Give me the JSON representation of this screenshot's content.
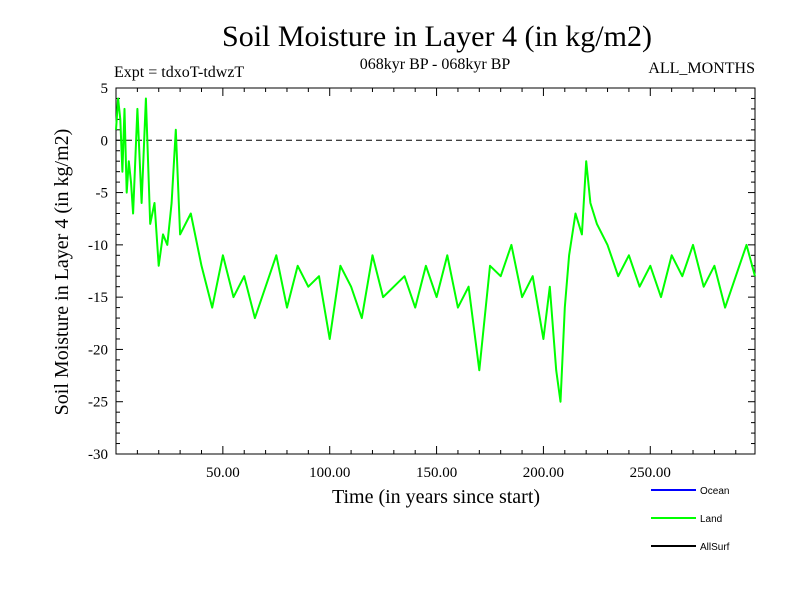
{
  "chart_data": {
    "type": "line",
    "title": "Soil Moisture in Layer 4 (in kg/m2)",
    "subtitle_left": "Expt = tdxoT-tdwzT",
    "subtitle_center": "068kyr BP - 068kyr BP",
    "subtitle_right": "ALL_MONTHS",
    "xlabel": "Time (in years since start)",
    "ylabel": "Soil Moisture in Layer 4 (in kg/m2)",
    "xlim": [
      0,
      299
    ],
    "ylim": [
      -30,
      5
    ],
    "x_ticks": [
      50,
      100,
      150,
      200,
      250
    ],
    "x_tick_labels": [
      "50.00",
      "100.00",
      "150.00",
      "200.00",
      "250.00"
    ],
    "y_ticks": [
      5,
      0,
      -5,
      -10,
      -15,
      -20,
      -25,
      -30
    ],
    "y_tick_labels": [
      "5",
      "0",
      "-5",
      "-10",
      "-15",
      "-20",
      "-25",
      "-30"
    ],
    "zero_line": true,
    "grid": false,
    "legend_position": "bottom-right",
    "series": [
      {
        "name": "Land",
        "color": "#00ff00",
        "x": [
          0,
          1,
          2,
          3,
          4,
          5,
          6,
          7,
          8,
          10,
          12,
          14,
          16,
          18,
          20,
          22,
          24,
          26,
          28,
          30,
          35,
          40,
          45,
          50,
          55,
          60,
          65,
          70,
          75,
          80,
          85,
          90,
          95,
          100,
          105,
          110,
          115,
          120,
          125,
          130,
          135,
          140,
          145,
          150,
          155,
          160,
          165,
          170,
          175,
          180,
          185,
          190,
          195,
          200,
          203,
          206,
          208,
          210,
          212,
          215,
          218,
          220,
          222,
          225,
          230,
          235,
          240,
          245,
          250,
          255,
          260,
          265,
          270,
          275,
          280,
          285,
          290,
          295,
          299
        ],
        "y": [
          1,
          4,
          2,
          -3,
          3,
          -5,
          -2,
          -4,
          -7,
          3,
          -6,
          4,
          -8,
          -6,
          -12,
          -9,
          -10,
          -6,
          1,
          -9,
          -7,
          -12,
          -16,
          -11,
          -15,
          -13,
          -17,
          -14,
          -11,
          -16,
          -12,
          -14,
          -13,
          -19,
          -12,
          -14,
          -17,
          -11,
          -15,
          -14,
          -13,
          -16,
          -12,
          -15,
          -11,
          -16,
          -14,
          -22,
          -12,
          -13,
          -10,
          -15,
          -13,
          -19,
          -14,
          -22,
          -25,
          -16,
          -11,
          -7,
          -9,
          -2,
          -6,
          -8,
          -10,
          -13,
          -11,
          -14,
          -12,
          -15,
          -11,
          -13,
          -10,
          -14,
          -12,
          -16,
          -13,
          -10,
          -13
        ]
      }
    ],
    "legend": [
      {
        "label": "Ocean",
        "color": "#0000ff"
      },
      {
        "label": "Land",
        "color": "#00ff00"
      },
      {
        "label": "AllSurf",
        "color": "#000000"
      }
    ]
  }
}
